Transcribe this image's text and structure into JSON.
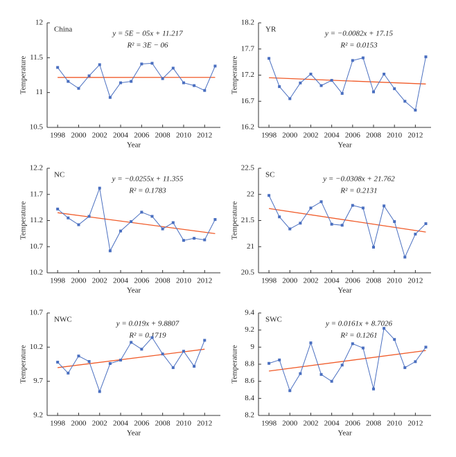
{
  "chart_data": [
    {
      "type": "line",
      "title": "China",
      "equation": "y = 5E − 05x + 11.217",
      "r2": "R² = 3E − 06",
      "x_label": "Year",
      "y_label": "Temperature",
      "x": [
        1998,
        1999,
        2000,
        2001,
        2002,
        2003,
        2004,
        2005,
        2006,
        2007,
        2008,
        2009,
        2010,
        2011,
        2012,
        2013
      ],
      "values": [
        11.36,
        11.16,
        11.06,
        11.24,
        11.4,
        10.93,
        11.14,
        11.16,
        11.41,
        11.42,
        11.2,
        11.35,
        11.14,
        11.1,
        11.03,
        11.38
      ],
      "color": "#4a6fc0",
      "trend": {
        "x": [
          1998,
          2013
        ],
        "values": [
          11.217,
          11.218
        ],
        "color": "#f05a28"
      },
      "xlim": [
        1997,
        2013.5
      ],
      "xticks": [
        1998,
        2000,
        2002,
        2004,
        2006,
        2008,
        2010,
        2012
      ],
      "ylim": [
        10.5,
        12
      ],
      "yticks": [
        10.5,
        11,
        11.5,
        12
      ]
    },
    {
      "type": "line",
      "title": "YR",
      "equation": "y = −0.0082x + 17.15",
      "r2": "R² = 0.0153",
      "x_label": "Year",
      "y_label": "Temperature",
      "x": [
        1998,
        1999,
        2000,
        2001,
        2002,
        2003,
        2004,
        2005,
        2006,
        2007,
        2008,
        2009,
        2010,
        2011,
        2012,
        2013
      ],
      "values": [
        17.52,
        16.98,
        16.75,
        17.05,
        17.22,
        17.0,
        17.1,
        16.85,
        17.48,
        17.53,
        16.88,
        17.22,
        16.94,
        16.7,
        16.53,
        17.55
      ],
      "color": "#4a6fc0",
      "trend": {
        "x": [
          1998,
          2013
        ],
        "values": [
          17.15,
          17.03
        ],
        "color": "#f05a28"
      },
      "xlim": [
        1997,
        2013.5
      ],
      "xticks": [
        1998,
        2000,
        2002,
        2004,
        2006,
        2008,
        2010,
        2012
      ],
      "ylim": [
        16.2,
        18.2
      ],
      "yticks": [
        16.2,
        16.7,
        17.2,
        17.7,
        18.2
      ]
    },
    {
      "type": "line",
      "title": "NC",
      "equation": "y = −0.0255x + 11.355",
      "r2": "R² = 0.1783",
      "x_label": "Year",
      "y_label": "Temperature",
      "x": [
        1998,
        1999,
        2000,
        2001,
        2002,
        2003,
        2004,
        2005,
        2006,
        2007,
        2008,
        2009,
        2010,
        2011,
        2012,
        2013
      ],
      "values": [
        11.42,
        11.25,
        11.12,
        11.28,
        11.82,
        10.62,
        11.0,
        11.18,
        11.36,
        11.28,
        11.04,
        11.16,
        10.82,
        10.86,
        10.83,
        11.22
      ],
      "color": "#4a6fc0",
      "trend": {
        "x": [
          1998,
          2013
        ],
        "values": [
          11.35,
          10.95
        ],
        "color": "#f05a28"
      },
      "xlim": [
        1997,
        2013.5
      ],
      "xticks": [
        1998,
        2000,
        2002,
        2004,
        2006,
        2008,
        2010,
        2012
      ],
      "ylim": [
        10.2,
        12.2
      ],
      "yticks": [
        10.2,
        10.7,
        11.2,
        11.7,
        12.2
      ]
    },
    {
      "type": "line",
      "title": "SC",
      "equation": "y = −0.0308x + 21.762",
      "r2": "R² = 0.2131",
      "x_label": "Year",
      "y_label": "Temperature",
      "x": [
        1998,
        1999,
        2000,
        2001,
        2002,
        2003,
        2004,
        2005,
        2006,
        2007,
        2008,
        2009,
        2010,
        2011,
        2012,
        2013
      ],
      "values": [
        21.98,
        21.57,
        21.34,
        21.45,
        21.74,
        21.86,
        21.43,
        21.41,
        21.79,
        21.74,
        20.99,
        21.78,
        21.48,
        20.8,
        21.24,
        21.44
      ],
      "color": "#4a6fc0",
      "trend": {
        "x": [
          1998,
          2013
        ],
        "values": [
          21.73,
          21.28
        ],
        "color": "#f05a28"
      },
      "xlim": [
        1997,
        2013.5
      ],
      "xticks": [
        1998,
        2000,
        2002,
        2004,
        2006,
        2008,
        2010,
        2012
      ],
      "ylim": [
        20.5,
        22.5
      ],
      "yticks": [
        20.5,
        21,
        21.5,
        22,
        22.5
      ]
    },
    {
      "type": "line",
      "title": "NWC",
      "equation": "y = 0.019x + 9.8807",
      "r2": "R² = 0.1719",
      "x_label": "Year",
      "y_label": "Temperature",
      "x": [
        1998,
        1999,
        2000,
        2001,
        2002,
        2003,
        2004,
        2005,
        2006,
        2007,
        2008,
        2009,
        2010,
        2011,
        2012
      ],
      "values": [
        9.98,
        9.82,
        10.07,
        9.99,
        9.55,
        9.96,
        10.01,
        10.27,
        10.17,
        10.34,
        10.1,
        9.9,
        10.14,
        9.92,
        10.3
      ],
      "color": "#4a6fc0",
      "trend": {
        "x": [
          1998,
          2012
        ],
        "values": [
          9.9,
          10.17
        ],
        "color": "#f05a28"
      },
      "xlim": [
        1997,
        2013.5
      ],
      "xticks": [
        1998,
        2000,
        2002,
        2004,
        2006,
        2008,
        2010,
        2012
      ],
      "ylim": [
        9.2,
        10.7
      ],
      "yticks": [
        9.2,
        9.7,
        10.2,
        10.7
      ]
    },
    {
      "type": "line",
      "title": "SWC",
      "equation": "y = 0.0161x + 8.7026",
      "r2": "R² = 0.1261",
      "x_label": "Year",
      "y_label": "Temperature",
      "x": [
        1998,
        1999,
        2000,
        2001,
        2002,
        2003,
        2004,
        2005,
        2006,
        2007,
        2008,
        2009,
        2010,
        2011,
        2012,
        2013
      ],
      "values": [
        8.81,
        8.85,
        8.49,
        8.69,
        9.05,
        8.68,
        8.6,
        8.79,
        9.04,
        8.99,
        8.51,
        9.22,
        9.09,
        8.76,
        8.83,
        9.0
      ],
      "color": "#4a6fc0",
      "trend": {
        "x": [
          1998,
          2013
        ],
        "values": [
          8.72,
          8.96
        ],
        "color": "#f05a28"
      },
      "xlim": [
        1997,
        2013.5
      ],
      "xticks": [
        1998,
        2000,
        2002,
        2004,
        2006,
        2008,
        2010,
        2012
      ],
      "ylim": [
        8.2,
        9.4
      ],
      "yticks": [
        8.2,
        8.4,
        8.6,
        8.8,
        9,
        9.2,
        9.4
      ]
    }
  ]
}
